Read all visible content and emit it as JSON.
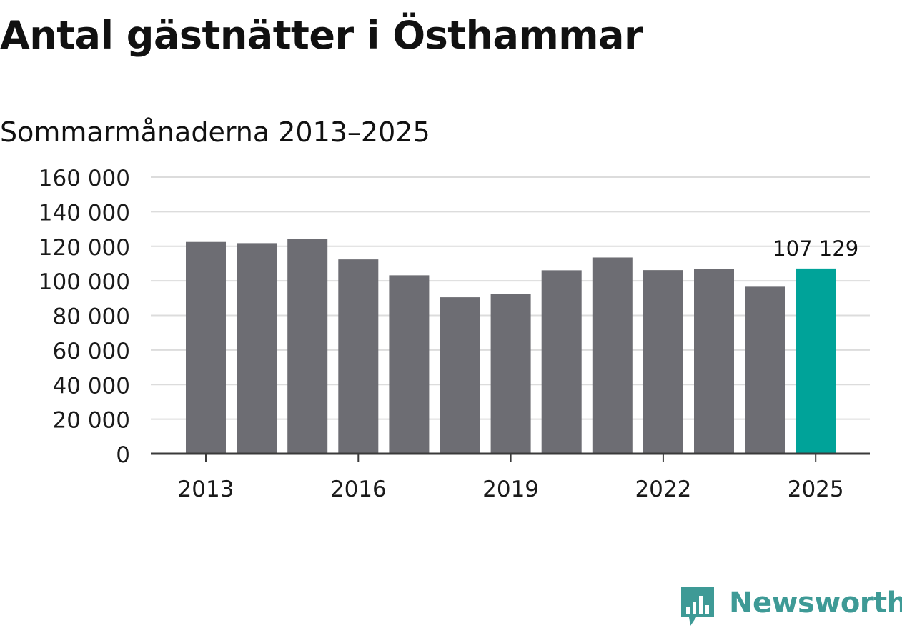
{
  "title": "Antal gästnätter i Östhammar",
  "subtitle": "Sommarmånaderna 2013–2025",
  "colors": {
    "bar": "#6d6d73",
    "highlight": "#00a399",
    "grid": "#dcdcdc",
    "axis": "#3a3a3a",
    "brand": "#3e9a96"
  },
  "brand": {
    "name": "Newsworthy",
    "icon": "newsworthy-logo-icon"
  },
  "chart_data": {
    "type": "bar",
    "categories": [
      "2013",
      "2014",
      "2015",
      "2016",
      "2017",
      "2018",
      "2019",
      "2020",
      "2021",
      "2022",
      "2023",
      "2024",
      "2025"
    ],
    "values": [
      122500,
      121800,
      124200,
      112400,
      103200,
      90500,
      92300,
      106100,
      113500,
      106200,
      106800,
      96600,
      107129
    ],
    "x_tick_labels": [
      "2013",
      "2016",
      "2019",
      "2022",
      "2025"
    ],
    "y_ticks": [
      0,
      20000,
      40000,
      60000,
      80000,
      100000,
      120000,
      140000,
      160000
    ],
    "y_tick_labels": [
      "0",
      "20 000",
      "40 000",
      "60 000",
      "80 000",
      "100 000",
      "120 000",
      "140 000",
      "160 000"
    ],
    "ylim": [
      0,
      160000
    ],
    "highlight_category": "2025",
    "data_label": "107 129",
    "grid": true,
    "xlabel": "",
    "ylabel": ""
  }
}
